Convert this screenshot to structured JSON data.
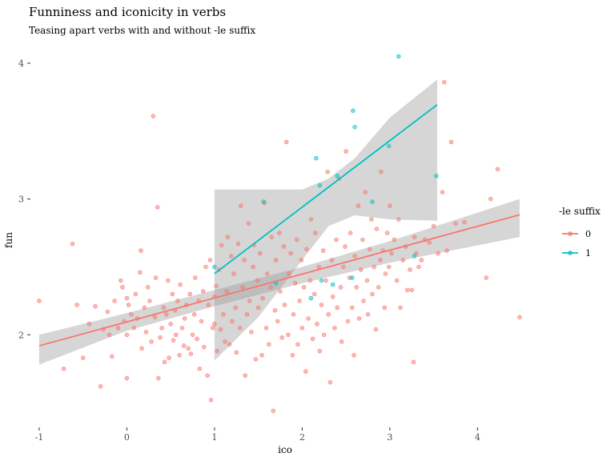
{
  "chart_data": {
    "type": "scatter",
    "title": "Funniness and iconicity in verbs",
    "subtitle": "Teasing apart verbs with and without -le suffix",
    "xlabel": "ico",
    "ylabel": "fun",
    "xlim": [
      -1.1,
      4.6
    ],
    "ylim": [
      1.33,
      4.1
    ],
    "x_ticks": [
      -1,
      0,
      1,
      2,
      3,
      4
    ],
    "y_ticks": [
      2,
      3,
      4
    ],
    "grid": false,
    "legend": {
      "title": "-le suffix",
      "position": "right",
      "labels": [
        "0",
        "1"
      ]
    },
    "series": [
      {
        "name": "0",
        "color": "#F8766D",
        "fit": {
          "x_range": [
            -1,
            4.48
          ],
          "intercept": 2.095,
          "slope": 0.176
        },
        "band": [
          {
            "x": -1.0,
            "lo": 1.78,
            "hi": 2.0
          },
          {
            "x": 0.0,
            "lo": 2.03,
            "hi": 2.16
          },
          {
            "x": 1.0,
            "lo": 2.21,
            "hi": 2.33
          },
          {
            "x": 2.0,
            "lo": 2.38,
            "hi": 2.5
          },
          {
            "x": 3.0,
            "lo": 2.53,
            "hi": 2.69
          },
          {
            "x": 4.48,
            "lo": 2.72,
            "hi": 3.0
          }
        ],
        "points": [
          [
            -1.0,
            2.25
          ],
          [
            -0.72,
            1.75
          ],
          [
            -0.62,
            2.67
          ],
          [
            -0.57,
            2.22
          ],
          [
            -0.5,
            1.83
          ],
          [
            -0.43,
            2.08
          ],
          [
            -0.36,
            2.21
          ],
          [
            -0.3,
            1.62
          ],
          [
            -0.27,
            2.04
          ],
          [
            -0.22,
            2.17
          ],
          [
            -0.2,
            2.0
          ],
          [
            -0.17,
            1.84
          ],
          [
            -0.14,
            2.25
          ],
          [
            -0.1,
            2.05
          ],
          [
            -0.07,
            2.4
          ],
          [
            -0.05,
            2.35
          ],
          [
            -0.03,
            2.1
          ],
          [
            0.0,
            2.27
          ],
          [
            0.0,
            2.0
          ],
          [
            0.0,
            1.68
          ],
          [
            0.02,
            2.22
          ],
          [
            0.05,
            2.15
          ],
          [
            0.08,
            2.05
          ],
          [
            0.1,
            2.3
          ],
          [
            0.12,
            2.12
          ],
          [
            0.15,
            2.46
          ],
          [
            0.16,
            2.62
          ],
          [
            0.17,
            1.9
          ],
          [
            0.2,
            2.2
          ],
          [
            0.22,
            2.02
          ],
          [
            0.24,
            2.35
          ],
          [
            0.26,
            2.25
          ],
          [
            0.28,
            1.95
          ],
          [
            0.3,
            3.61
          ],
          [
            0.32,
            2.13
          ],
          [
            0.33,
            2.42
          ],
          [
            0.35,
            2.94
          ],
          [
            0.36,
            1.68
          ],
          [
            0.38,
            1.98
          ],
          [
            0.4,
            2.05
          ],
          [
            0.42,
            2.2
          ],
          [
            0.43,
            1.8
          ],
          [
            0.45,
            2.15
          ],
          [
            0.47,
            2.4
          ],
          [
            0.48,
            1.83
          ],
          [
            0.5,
            2.08
          ],
          [
            0.52,
            2.3
          ],
          [
            0.53,
            1.96
          ],
          [
            0.55,
            2.18
          ],
          [
            0.56,
            2.0
          ],
          [
            0.58,
            2.25
          ],
          [
            0.6,
            1.85
          ],
          [
            0.61,
            2.37
          ],
          [
            0.63,
            2.05
          ],
          [
            0.65,
            1.92
          ],
          [
            0.66,
            2.12
          ],
          [
            0.68,
            2.22
          ],
          [
            0.7,
            1.9
          ],
          [
            0.72,
            2.3
          ],
          [
            0.73,
            1.86
          ],
          [
            0.75,
            2.0
          ],
          [
            0.77,
            2.15
          ],
          [
            0.78,
            2.42
          ],
          [
            0.8,
            1.97
          ],
          [
            0.82,
            2.25
          ],
          [
            0.83,
            1.75
          ],
          [
            0.85,
            2.1
          ],
          [
            0.87,
            2.32
          ],
          [
            0.88,
            1.91
          ],
          [
            0.9,
            2.5
          ],
          [
            0.92,
            1.7
          ],
          [
            0.93,
            2.22
          ],
          [
            0.95,
            2.55
          ],
          [
            0.96,
            1.52
          ],
          [
            0.98,
            2.05
          ],
          [
            1.0,
            2.28
          ],
          [
            1.0,
            2.08
          ],
          [
            1.02,
            2.36
          ],
          [
            1.03,
            1.88
          ],
          [
            1.05,
            2.48
          ],
          [
            1.07,
            2.04
          ],
          [
            1.08,
            2.66
          ],
          [
            1.1,
            2.15
          ],
          [
            1.12,
            1.95
          ],
          [
            1.14,
            2.32
          ],
          [
            1.15,
            2.72
          ],
          [
            1.17,
            1.93
          ],
          [
            1.19,
            2.58
          ],
          [
            1.2,
            2.1
          ],
          [
            1.22,
            2.45
          ],
          [
            1.24,
            2.2
          ],
          [
            1.25,
            1.87
          ],
          [
            1.27,
            2.67
          ],
          [
            1.29,
            2.05
          ],
          [
            1.3,
            2.95
          ],
          [
            1.32,
            2.35
          ],
          [
            1.34,
            2.55
          ],
          [
            1.35,
            1.7
          ],
          [
            1.37,
            2.15
          ],
          [
            1.39,
            2.82
          ],
          [
            1.4,
            2.25
          ],
          [
            1.42,
            2.02
          ],
          [
            1.44,
            2.5
          ],
          [
            1.45,
            2.66
          ],
          [
            1.47,
            1.82
          ],
          [
            1.49,
            2.4
          ],
          [
            1.5,
            2.2
          ],
          [
            1.52,
            2.6
          ],
          [
            1.54,
            1.85
          ],
          [
            1.55,
            2.27
          ],
          [
            1.57,
            2.97
          ],
          [
            1.59,
            2.05
          ],
          [
            1.6,
            2.45
          ],
          [
            1.62,
            1.93
          ],
          [
            1.64,
            2.35
          ],
          [
            1.65,
            2.72
          ],
          [
            1.67,
            1.44
          ],
          [
            1.69,
            2.18
          ],
          [
            1.7,
            2.55
          ],
          [
            1.72,
            2.1
          ],
          [
            1.74,
            2.75
          ],
          [
            1.75,
            2.32
          ],
          [
            1.77,
            1.98
          ],
          [
            1.79,
            2.65
          ],
          [
            1.8,
            2.22
          ],
          [
            1.82,
            3.42
          ],
          [
            1.84,
            2.0
          ],
          [
            1.85,
            2.45
          ],
          [
            1.87,
            2.6
          ],
          [
            1.89,
            1.85
          ],
          [
            1.9,
            2.15
          ],
          [
            1.92,
            2.38
          ],
          [
            1.94,
            2.7
          ],
          [
            1.95,
            1.93
          ],
          [
            1.97,
            2.25
          ],
          [
            1.99,
            2.55
          ],
          [
            2.0,
            2.05
          ],
          [
            2.02,
            2.35
          ],
          [
            2.04,
            1.73
          ],
          [
            2.05,
            2.63
          ],
          [
            2.07,
            2.12
          ],
          [
            2.09,
            2.4
          ],
          [
            2.1,
            2.85
          ],
          [
            2.12,
            1.97
          ],
          [
            2.14,
            2.3
          ],
          [
            2.15,
            2.75
          ],
          [
            2.17,
            2.08
          ],
          [
            2.19,
            2.5
          ],
          [
            2.2,
            1.88
          ],
          [
            2.22,
            2.22
          ],
          [
            2.24,
            2.62
          ],
          [
            2.25,
            2.0
          ],
          [
            2.27,
            2.4
          ],
          [
            2.29,
            3.2
          ],
          [
            2.3,
            2.15
          ],
          [
            2.32,
            1.65
          ],
          [
            2.34,
            2.55
          ],
          [
            2.35,
            2.28
          ],
          [
            2.37,
            2.05
          ],
          [
            2.39,
            2.7
          ],
          [
            2.4,
            2.2
          ],
          [
            2.42,
            3.15
          ],
          [
            2.44,
            2.35
          ],
          [
            2.45,
            1.95
          ],
          [
            2.47,
            2.5
          ],
          [
            2.49,
            2.65
          ],
          [
            2.5,
            3.35
          ],
          [
            2.52,
            2.1
          ],
          [
            2.54,
            2.42
          ],
          [
            2.55,
            2.75
          ],
          [
            2.57,
            2.2
          ],
          [
            2.59,
            1.85
          ],
          [
            2.6,
            2.58
          ],
          [
            2.62,
            2.35
          ],
          [
            2.64,
            2.95
          ],
          [
            2.65,
            2.12
          ],
          [
            2.67,
            2.48
          ],
          [
            2.69,
            2.7
          ],
          [
            2.7,
            2.25
          ],
          [
            2.72,
            3.05
          ],
          [
            2.74,
            2.4
          ],
          [
            2.75,
            2.15
          ],
          [
            2.77,
            2.63
          ],
          [
            2.79,
            2.85
          ],
          [
            2.8,
            2.3
          ],
          [
            2.82,
            2.5
          ],
          [
            2.84,
            2.04
          ],
          [
            2.85,
            2.78
          ],
          [
            2.87,
            2.35
          ],
          [
            2.89,
            2.55
          ],
          [
            2.9,
            3.2
          ],
          [
            2.92,
            2.62
          ],
          [
            2.94,
            2.2
          ],
          [
            2.95,
            2.45
          ],
          [
            2.97,
            2.75
          ],
          [
            2.99,
            2.5
          ],
          [
            3.0,
            2.95
          ],
          [
            3.02,
            2.6
          ],
          [
            3.05,
            2.7
          ],
          [
            3.08,
            2.4
          ],
          [
            3.1,
            2.85
          ],
          [
            3.12,
            2.2
          ],
          [
            3.15,
            2.55
          ],
          [
            3.18,
            2.65
          ],
          [
            3.2,
            2.33
          ],
          [
            3.23,
            2.48
          ],
          [
            3.25,
            2.33
          ],
          [
            3.27,
            1.8
          ],
          [
            3.28,
            2.72
          ],
          [
            3.3,
            2.6
          ],
          [
            3.33,
            2.5
          ],
          [
            3.36,
            2.55
          ],
          [
            3.4,
            2.7
          ],
          [
            3.45,
            2.68
          ],
          [
            3.5,
            2.8
          ],
          [
            3.55,
            2.6
          ],
          [
            3.6,
            3.05
          ],
          [
            3.62,
            3.86
          ],
          [
            3.65,
            2.62
          ],
          [
            3.7,
            3.42
          ],
          [
            3.75,
            2.82
          ],
          [
            3.85,
            2.83
          ],
          [
            4.1,
            2.42
          ],
          [
            4.15,
            3.0
          ],
          [
            4.23,
            3.22
          ],
          [
            4.48,
            2.13
          ]
        ]
      },
      {
        "name": "1",
        "color": "#00BFC4",
        "fit": {
          "x_range": [
            1,
            3.54
          ],
          "intercept": 1.96,
          "slope": 0.49
        },
        "band": [
          {
            "x": 1.0,
            "lo": 1.81,
            "hi": 3.07
          },
          {
            "x": 1.5,
            "lo": 2.13,
            "hi": 3.07
          },
          {
            "x": 2.0,
            "lo": 2.55,
            "hi": 3.07
          },
          {
            "x": 2.3,
            "lo": 2.8,
            "hi": 3.15
          },
          {
            "x": 2.6,
            "lo": 2.88,
            "hi": 3.3
          },
          {
            "x": 3.0,
            "lo": 2.85,
            "hi": 3.6
          },
          {
            "x": 3.54,
            "lo": 2.84,
            "hi": 3.88
          }
        ],
        "points": [
          [
            1.0,
            2.5
          ],
          [
            1.56,
            2.98
          ],
          [
            1.7,
            2.38
          ],
          [
            2.1,
            2.27
          ],
          [
            2.16,
            3.3
          ],
          [
            2.2,
            3.1
          ],
          [
            2.22,
            2.4
          ],
          [
            2.35,
            2.37
          ],
          [
            2.4,
            3.17
          ],
          [
            2.57,
            2.42
          ],
          [
            2.58,
            3.65
          ],
          [
            2.6,
            3.53
          ],
          [
            2.8,
            2.98
          ],
          [
            2.99,
            3.39
          ],
          [
            3.1,
            4.05
          ],
          [
            3.28,
            2.58
          ],
          [
            3.53,
            3.17
          ]
        ]
      }
    ]
  }
}
